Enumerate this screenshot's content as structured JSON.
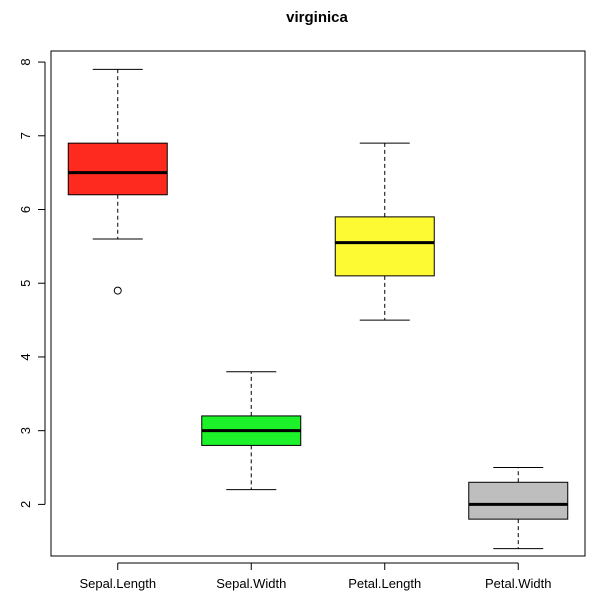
{
  "chart_data": {
    "type": "boxplot",
    "title": "virginica",
    "xlabel": "",
    "ylabel": "",
    "ylim": [
      1.3,
      8.15
    ],
    "y_ticks": [
      2,
      3,
      4,
      5,
      6,
      7,
      8
    ],
    "categories": [
      "Sepal.Length",
      "Sepal.Width",
      "Petal.Length",
      "Petal.Width"
    ],
    "boxes": [
      {
        "category": "Sepal.Length",
        "whisker_low": 5.6,
        "q1": 6.2,
        "median": 6.5,
        "q3": 6.9,
        "whisker_high": 7.9,
        "outliers": [
          4.9
        ],
        "color": "#ff2a1f"
      },
      {
        "category": "Sepal.Width",
        "whisker_low": 2.2,
        "q1": 2.8,
        "median": 3.0,
        "q3": 3.2,
        "whisker_high": 3.8,
        "outliers": [],
        "color": "#1cf12a"
      },
      {
        "category": "Petal.Length",
        "whisker_low": 4.5,
        "q1": 5.1,
        "median": 5.55,
        "q3": 5.9,
        "whisker_high": 6.9,
        "outliers": [],
        "color": "#fdfa34"
      },
      {
        "category": "Petal.Width",
        "whisker_low": 1.4,
        "q1": 1.8,
        "median": 2.0,
        "q3": 2.3,
        "whisker_high": 2.5,
        "outliers": [],
        "color": "#bebebe"
      }
    ],
    "grid": false,
    "legend": "none"
  }
}
